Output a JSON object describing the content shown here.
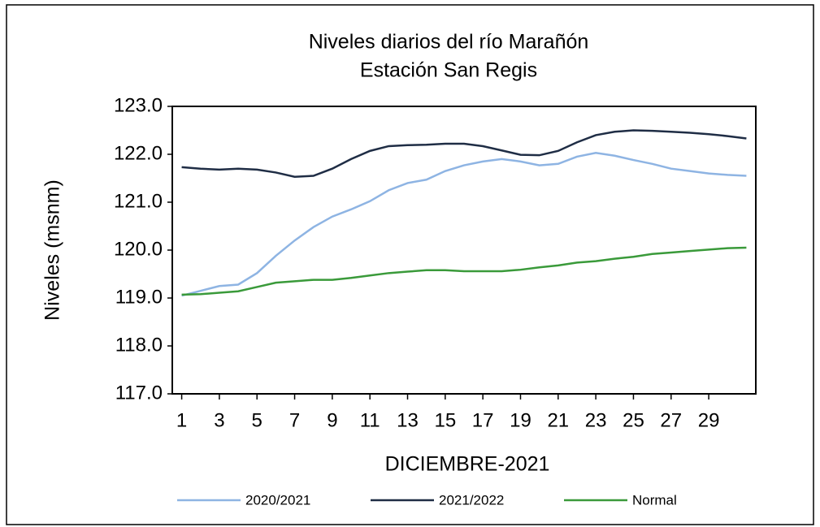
{
  "chart_data": {
    "type": "line",
    "title": "Niveles  diarios del río Marañón",
    "subtitle": "Estación San Regis",
    "xlabel": "DICIEMBRE-2021",
    "ylabel": "Niveles (msnm)",
    "x": [
      1,
      2,
      3,
      4,
      5,
      6,
      7,
      8,
      9,
      10,
      11,
      12,
      13,
      14,
      15,
      16,
      17,
      18,
      19,
      20,
      21,
      22,
      23,
      24,
      25,
      26,
      27,
      28,
      29,
      30,
      31
    ],
    "xlim": [
      0.5,
      31.5
    ],
    "xticks": [
      1,
      3,
      5,
      7,
      9,
      11,
      13,
      15,
      17,
      19,
      21,
      23,
      25,
      27,
      29
    ],
    "ylim": [
      117,
      123
    ],
    "yticks": [
      {
        "value": 117,
        "label": "117.0"
      },
      {
        "value": 118,
        "label": "118.0"
      },
      {
        "value": 119,
        "label": "119.0"
      },
      {
        "value": 120,
        "label": "120.0"
      },
      {
        "value": 121,
        "label": "121.0"
      },
      {
        "value": 122,
        "label": "122.0"
      },
      {
        "value": 123,
        "label": "123.0"
      }
    ],
    "legend": "bottom",
    "series": [
      {
        "name": "2020/2021",
        "color": "#8eb4e3",
        "values": [
          119.05,
          119.15,
          119.25,
          119.28,
          119.52,
          119.88,
          120.2,
          120.48,
          120.7,
          120.85,
          121.02,
          121.25,
          121.4,
          121.47,
          121.65,
          121.77,
          121.85,
          121.9,
          121.85,
          121.77,
          121.8,
          121.95,
          122.03,
          121.97,
          121.88,
          121.8,
          121.7,
          121.65,
          121.6,
          121.57,
          121.55
        ]
      },
      {
        "name": "2021/2022",
        "color": "#1f2d45",
        "values": [
          121.73,
          121.7,
          121.68,
          121.7,
          121.68,
          121.62,
          121.53,
          121.55,
          121.7,
          121.9,
          122.07,
          122.17,
          122.19,
          122.2,
          122.22,
          122.22,
          122.17,
          122.08,
          121.99,
          121.98,
          122.07,
          122.25,
          122.4,
          122.47,
          122.5,
          122.49,
          122.47,
          122.45,
          122.42,
          122.38,
          122.33
        ]
      },
      {
        "name": "Normal",
        "color": "#3a9a3a",
        "values": [
          119.07,
          119.08,
          119.11,
          119.14,
          119.23,
          119.32,
          119.35,
          119.38,
          119.38,
          119.42,
          119.47,
          119.52,
          119.55,
          119.58,
          119.58,
          119.56,
          119.56,
          119.56,
          119.59,
          119.64,
          119.68,
          119.74,
          119.77,
          119.82,
          119.86,
          119.92,
          119.95,
          119.98,
          120.01,
          120.04,
          120.05
        ]
      }
    ]
  }
}
